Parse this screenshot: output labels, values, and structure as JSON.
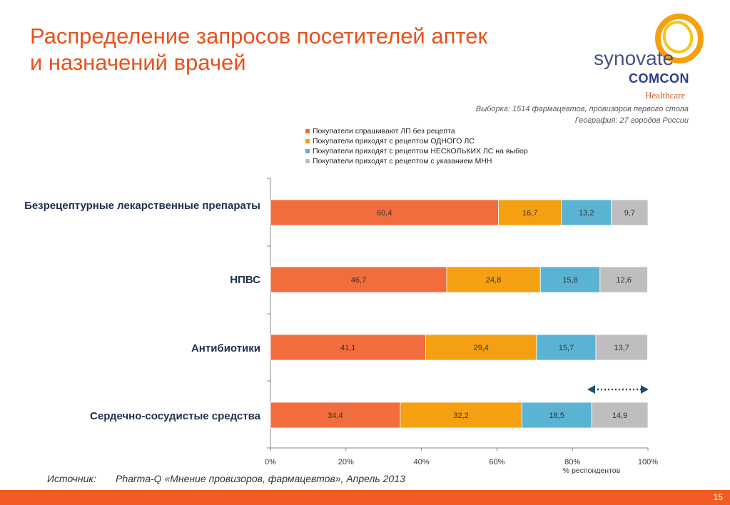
{
  "slide": {
    "title_line1": "Распределение запросов посетителей аптек",
    "title_line2": "и назначений врачей",
    "sample_note": "Выборка: 1514 фармацевтов, провизоров первого стола",
    "geo_note": "География: 27 городов России",
    "source_label": "Источник:",
    "source_text": "Pharma-Q «Мнение провизоров, фармацевтов», Апрель 2013",
    "page_number": "15"
  },
  "logo": {
    "synovate": "synovate",
    "comcon": "COMCON",
    "healthcare": "Healthcare"
  },
  "colors": {
    "accent": "#e8511c",
    "footer": "#f15a22"
  },
  "chart_data": {
    "type": "bar",
    "orientation": "horizontal",
    "stacked": true,
    "categories": [
      "Безрецептурные лекарственные препараты",
      "НПВС",
      "Антибиотики",
      "Сердечно-сосудистые средства"
    ],
    "series": [
      {
        "name": "Покупатели спрашивают ЛП без рецепта",
        "color": "#f26d3d",
        "values": [
          60.4,
          46.7,
          41.1,
          34.4
        ]
      },
      {
        "name": "Покупатели приходят с рецептом ОДНОГО ЛС",
        "color": "#f5a011",
        "values": [
          16.7,
          24.8,
          29.4,
          32.2
        ]
      },
      {
        "name": "Покупатели приходят с рецептом НЕСКОЛЬКИХ ЛС на выбор",
        "color": "#5bb3d3",
        "values": [
          13.2,
          15.8,
          15.7,
          18.5
        ]
      },
      {
        "name": "Покупатели приходят с рецептом с указанием МНН",
        "color": "#bebebe",
        "values": [
          9.7,
          12.6,
          13.7,
          14.9
        ]
      }
    ],
    "data_labels": [
      [
        "60,4",
        "46,7",
        "41,1",
        "34,4"
      ],
      [
        "16,7",
        "24,8",
        "29,4",
        "32,2"
      ],
      [
        "13,2",
        "15,8",
        "15,7",
        "18,5"
      ],
      [
        "9,7",
        "12,6",
        "13,7",
        "14,9"
      ]
    ],
    "xlim": [
      0,
      100
    ],
    "x_ticks": [
      "0%",
      "20%",
      "40%",
      "60%",
      "80%",
      "100%"
    ],
    "xlabel": "% респондентов",
    "legend_position": "top",
    "grid": false,
    "annotation": "dotted double-headed arrow over the last segment of the bottom bar"
  }
}
